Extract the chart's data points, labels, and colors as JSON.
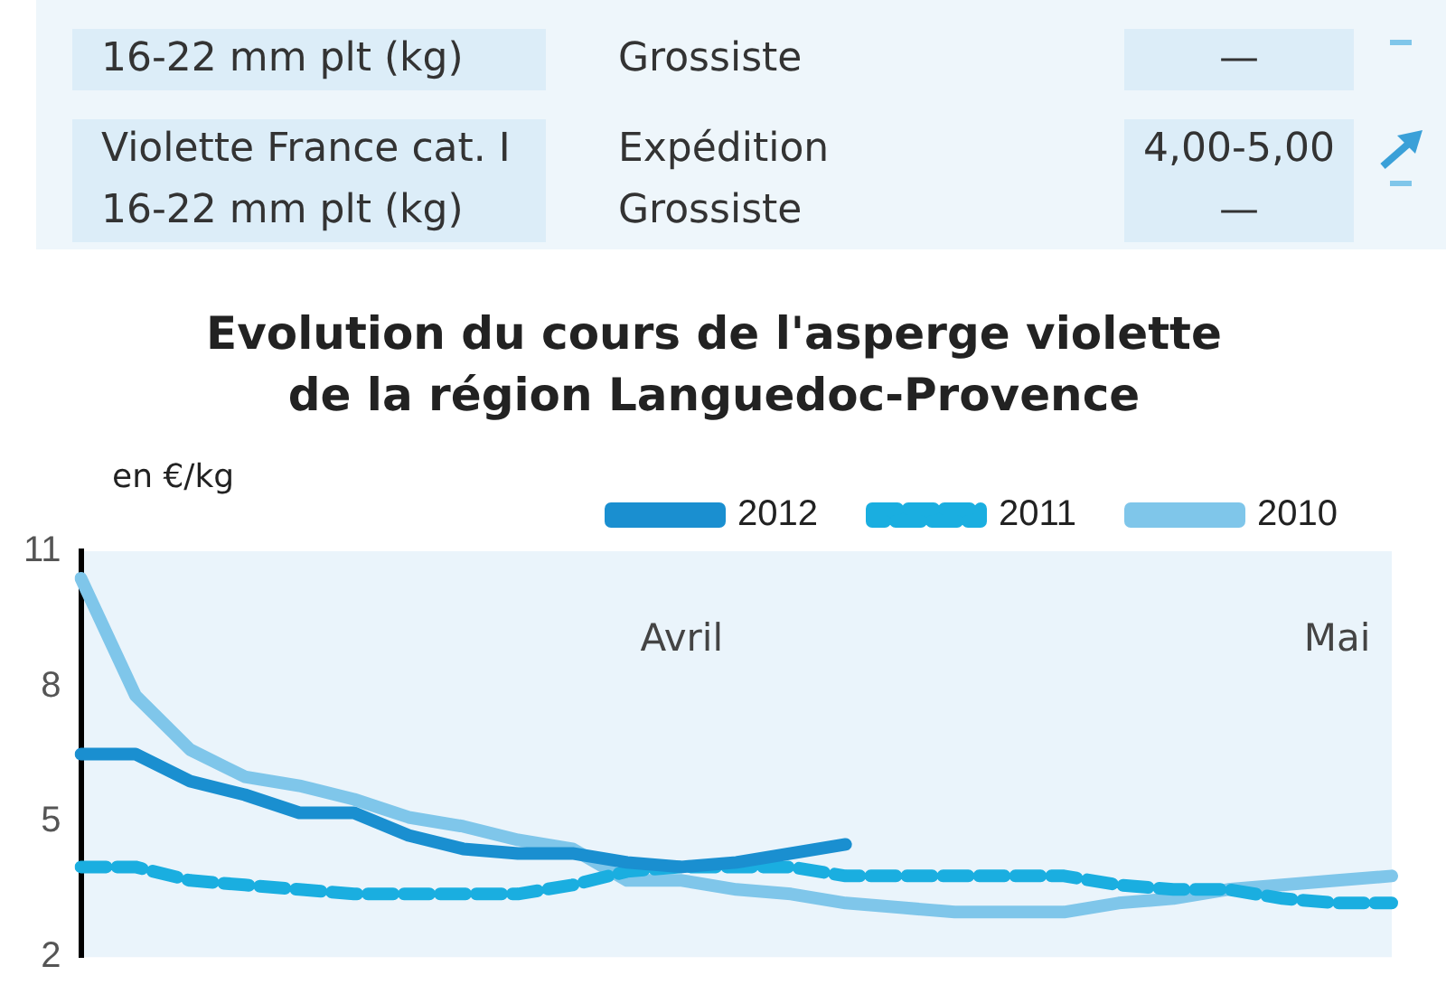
{
  "chart_data": {
    "type": "line",
    "title": "Evolution du cours de l'asperge violette\nde la région Languedoc-Provence",
    "ylabel": "en €/kg",
    "categories": [
      null,
      null,
      null,
      null,
      null,
      null,
      null,
      null,
      null,
      null,
      null,
      null,
      null,
      null,
      null,
      null,
      null,
      null,
      null,
      null,
      null,
      null,
      null,
      null,
      null
    ],
    "series": [
      {
        "name": "2012",
        "color": "#1a8fd0",
        "line_style": "solid",
        "values": [
          6.5,
          6.5,
          5.9,
          5.6,
          5.2,
          5.2,
          4.7,
          4.4,
          4.3,
          4.3,
          4.1,
          4.0,
          4.1,
          4.3,
          4.5,
          null,
          null,
          null,
          null,
          null,
          null,
          null,
          null,
          null,
          null
        ]
      },
      {
        "name": "2011",
        "color": "#1aaee0",
        "line_style": "dashed",
        "values": [
          4.0,
          4.0,
          3.7,
          3.6,
          3.5,
          3.4,
          3.4,
          3.4,
          3.4,
          3.6,
          3.9,
          4.0,
          4.0,
          4.0,
          3.8,
          3.8,
          3.8,
          3.8,
          3.8,
          3.6,
          3.5,
          3.5,
          3.3,
          3.2,
          3.2
        ]
      },
      {
        "name": "2010",
        "color": "#7fc6ea",
        "line_style": "solid",
        "values": [
          10.4,
          7.8,
          6.6,
          6.0,
          5.8,
          5.5,
          5.1,
          4.9,
          4.6,
          4.4,
          3.7,
          3.7,
          3.5,
          3.4,
          3.2,
          3.1,
          3.0,
          3.0,
          3.0,
          3.2,
          3.3,
          3.5,
          3.6,
          3.7,
          3.8
        ]
      }
    ],
    "ylim": [
      2,
      11
    ],
    "yticks": [
      2,
      5,
      8,
      11
    ],
    "grid": false,
    "legend": "top",
    "marker": "none",
    "annotations": [
      "Avril",
      "Mai",
      "16-22 mm plt (kg)",
      "Grossiste",
      "—",
      "Violette France cat. I\n16-22 mm plt (kg)",
      "Expédition\nGrossiste",
      "4,00-5,00\n—"
    ]
  }
}
